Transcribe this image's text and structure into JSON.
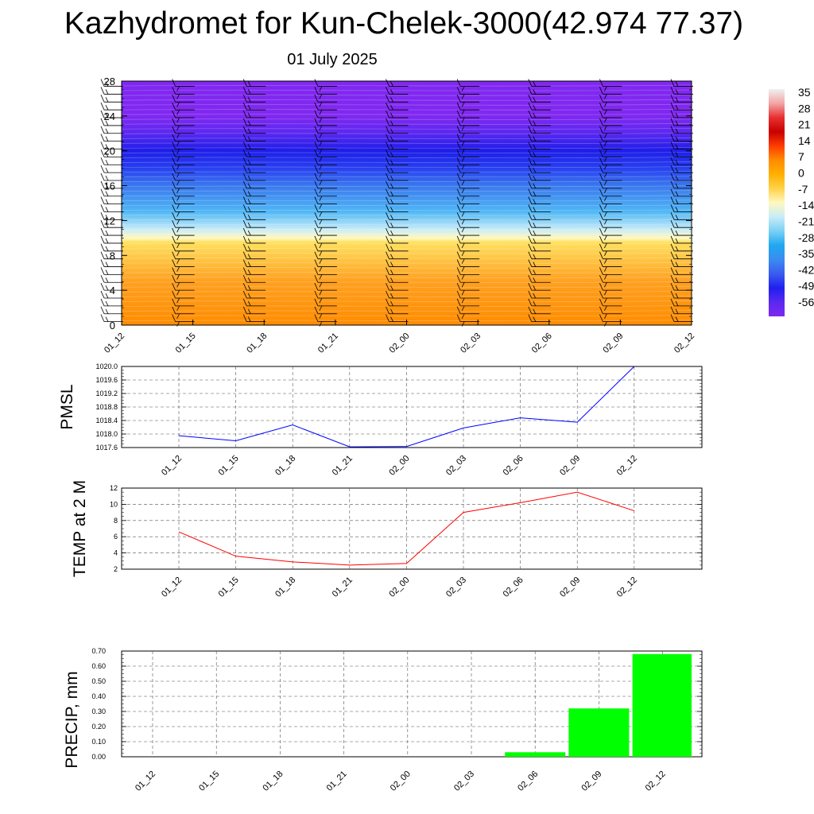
{
  "title": "Kazhydromet for Kun-Chelek-3000(42.974 77.37)",
  "subtitle": "01 July 2025",
  "time_labels": [
    "01_12",
    "01_15",
    "01_18",
    "01_21",
    "02_00",
    "02_03",
    "02_06",
    "02_09",
    "02_12"
  ],
  "colorbar": {
    "labels": [
      "35",
      "28",
      "21",
      "14",
      "7",
      "0",
      "-7",
      "-14",
      "-21",
      "-28",
      "-35",
      "-42",
      "-49",
      "-56"
    ],
    "colors": [
      "#f1f1f1",
      "#f2a6a6",
      "#e83030",
      "#c80000",
      "#ff3c00",
      "#ff8c00",
      "#ffb000",
      "#ffd24a",
      "#fff8c0",
      "#c8ecf8",
      "#7ad0f5",
      "#20a8f0",
      "#3a8cf0",
      "#3a5cf0",
      "#2020f0",
      "#5a28f0",
      "#8028f0"
    ]
  },
  "chart_data": [
    {
      "type": "heatmap",
      "title": "",
      "x": [
        "01_12",
        "01_15",
        "01_18",
        "01_21",
        "02_00",
        "02_03",
        "02_06",
        "02_09",
        "02_12"
      ],
      "y_ticks": [
        0,
        4,
        8,
        12,
        16,
        20,
        24,
        28
      ],
      "ylim": [
        0,
        28
      ],
      "gradient": [
        {
          "y": 0,
          "value": 3,
          "color": "#ff8c00"
        },
        {
          "y": 5,
          "value": 1,
          "color": "#ffa020"
        },
        {
          "y": 9.5,
          "value": -9,
          "color": "#ffe060"
        },
        {
          "y": 10,
          "value": -12,
          "color": "#fff8c0"
        },
        {
          "y": 11,
          "value": -20,
          "color": "#c8ecf8"
        },
        {
          "y": 13,
          "value": -33,
          "color": "#50b8f5"
        },
        {
          "y": 16,
          "value": -45,
          "color": "#3a78ee"
        },
        {
          "y": 18,
          "value": -52,
          "color": "#2840f0"
        },
        {
          "y": 20,
          "value": -56,
          "color": "#1e1ee8"
        },
        {
          "y": 22,
          "value": -58,
          "color": "#5a28f0"
        },
        {
          "y": 24,
          "value": -59,
          "color": "#8028f0"
        },
        {
          "y": 28,
          "value": -59,
          "color": "#8028f0"
        }
      ],
      "wind_barbs": "at each time step, every 0.9 height unit"
    },
    {
      "type": "line",
      "ylabel": "PMSL",
      "x": [
        "01_12",
        "01_15",
        "01_18",
        "01_21",
        "02_00",
        "02_03",
        "02_06",
        "02_09",
        "02_12"
      ],
      "values": [
        1017.95,
        1017.8,
        1018.27,
        1017.62,
        1017.63,
        1018.18,
        1018.48,
        1018.35,
        1020.0
      ],
      "ylim": [
        1017.6,
        1020.0
      ],
      "yticks": [
        "1020.0",
        "1019.6",
        "1019.2",
        "1018.8",
        "1018.4",
        "1018.0",
        "1017.6"
      ],
      "color": "#0000ff",
      "grid": true
    },
    {
      "type": "line",
      "ylabel": "TEMP at 2 M",
      "x": [
        "01_12",
        "01_15",
        "01_18",
        "01_21",
        "02_00",
        "02_03",
        "02_06",
        "02_09",
        "02_12"
      ],
      "values": [
        6.6,
        3.6,
        2.9,
        2.5,
        2.7,
        9.0,
        10.2,
        11.5,
        9.2
      ],
      "ylim": [
        2,
        12
      ],
      "yticks": [
        "12",
        "10",
        "8",
        "6",
        "4",
        "2"
      ],
      "color": "#ff0000",
      "grid": true
    },
    {
      "type": "bar",
      "ylabel": "PRECIP, mm",
      "categories": [
        "01_12",
        "01_15",
        "01_18",
        "01_21",
        "02_00",
        "02_03",
        "02_06",
        "02_09",
        "02_12"
      ],
      "values": [
        0,
        0,
        0,
        0,
        0,
        0,
        0.03,
        0.32,
        0.68
      ],
      "ylim": [
        0,
        0.7
      ],
      "yticks": [
        "0.70",
        "0.60",
        "0.50",
        "0.40",
        "0.30",
        "0.20",
        "0.10",
        "0.00"
      ],
      "color": "#00ff00",
      "grid": true
    }
  ]
}
